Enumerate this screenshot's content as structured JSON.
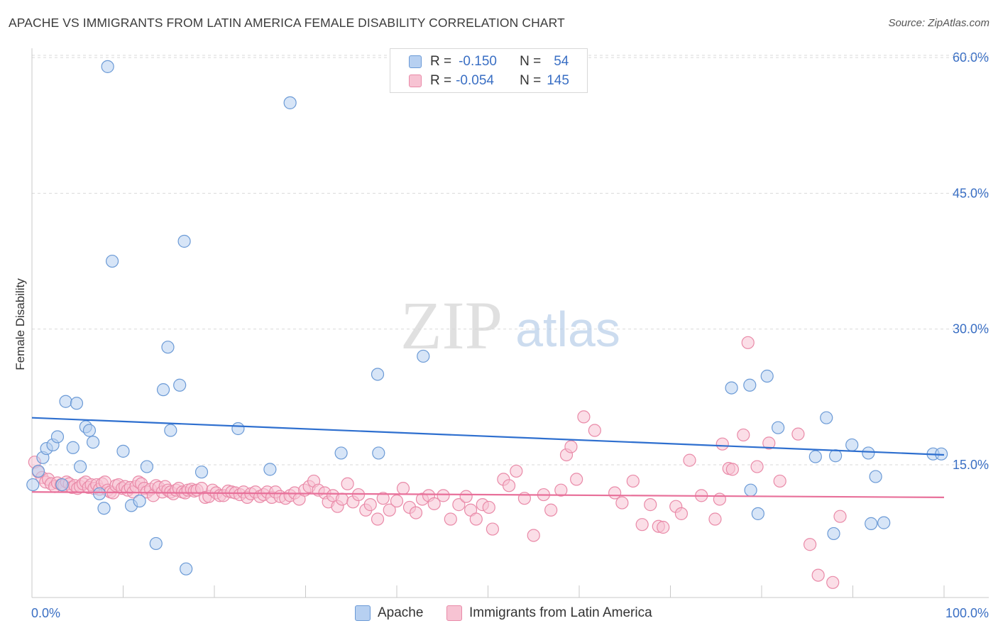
{
  "title": "APACHE VS IMMIGRANTS FROM LATIN AMERICA FEMALE DISABILITY CORRELATION CHART",
  "source": "Source: ZipAtlas.com",
  "watermark": {
    "zip": "ZIP",
    "atlas": "atlas"
  },
  "legend": {
    "series1": {
      "r_label": "R =",
      "r_value": "-0.150",
      "n_label": "N =",
      "n_value": "54"
    },
    "series2": {
      "r_label": "R =",
      "r_value": "-0.054",
      "n_label": "N =",
      "n_value": "145"
    }
  },
  "colors": {
    "apache_fill": "#b7d0f1",
    "apache_stroke": "#6b9ad6",
    "apache_line": "#2e6fcf",
    "latam_fill": "#f7c3d3",
    "latam_stroke": "#e98aa8",
    "latam_line": "#e8709a",
    "axis_label": "#3a6fc4",
    "grid": "#d9d9d9"
  },
  "chart_data": {
    "type": "scatter",
    "title": "APACHE VS IMMIGRANTS FROM LATIN AMERICA FEMALE DISABILITY CORRELATION CHART",
    "ylabel": "Female Disability",
    "xlabel": "",
    "xlim": [
      0,
      100
    ],
    "ylim": [
      0,
      61
    ],
    "x_tick_labels": [
      "0.0%",
      "100.0%"
    ],
    "y_ticks": [
      15,
      30,
      45,
      60
    ],
    "y_tick_labels": [
      "15.0%",
      "30.0%",
      "45.0%",
      "60.0%"
    ],
    "grid": "horizontal dashed",
    "legend_position": "top-center",
    "series": [
      {
        "name": "Apache",
        "R": -0.15,
        "N": 54,
        "trend": [
          [
            0,
            20.2
          ],
          [
            100,
            16.1
          ]
        ],
        "points": [
          [
            0.1,
            12.8
          ],
          [
            0.7,
            14.3
          ],
          [
            1.2,
            15.8
          ],
          [
            1.6,
            16.8
          ],
          [
            2.3,
            17.2
          ],
          [
            2.8,
            18.1
          ],
          [
            3.3,
            12.8
          ],
          [
            3.7,
            22.0
          ],
          [
            4.5,
            16.9
          ],
          [
            4.9,
            21.8
          ],
          [
            5.3,
            14.8
          ],
          [
            5.9,
            19.2
          ],
          [
            6.3,
            18.8
          ],
          [
            6.7,
            17.5
          ],
          [
            7.4,
            11.8
          ],
          [
            7.9,
            10.2
          ],
          [
            8.3,
            59.0
          ],
          [
            8.8,
            37.5
          ],
          [
            10.0,
            16.5
          ],
          [
            10.9,
            10.5
          ],
          [
            11.8,
            11.0
          ],
          [
            12.6,
            14.8
          ],
          [
            13.6,
            6.3
          ],
          [
            14.4,
            23.3
          ],
          [
            14.9,
            28.0
          ],
          [
            15.2,
            18.8
          ],
          [
            16.2,
            23.8
          ],
          [
            16.7,
            39.7
          ],
          [
            16.9,
            3.5
          ],
          [
            18.6,
            14.2
          ],
          [
            22.6,
            19.0
          ],
          [
            26.1,
            14.5
          ],
          [
            28.3,
            55.0
          ],
          [
            33.9,
            16.3
          ],
          [
            37.9,
            25.0
          ],
          [
            38.0,
            16.3
          ],
          [
            42.9,
            27.0
          ],
          [
            76.7,
            23.5
          ],
          [
            78.7,
            23.8
          ],
          [
            78.8,
            12.2
          ],
          [
            79.6,
            9.6
          ],
          [
            80.6,
            24.8
          ],
          [
            81.8,
            19.1
          ],
          [
            85.9,
            15.9
          ],
          [
            87.1,
            20.2
          ],
          [
            87.9,
            7.4
          ],
          [
            88.1,
            16.0
          ],
          [
            89.9,
            17.2
          ],
          [
            91.7,
            16.3
          ],
          [
            92.0,
            8.5
          ],
          [
            92.5,
            13.7
          ],
          [
            93.4,
            8.6
          ],
          [
            98.8,
            16.2
          ],
          [
            99.7,
            16.2
          ]
        ]
      },
      {
        "name": "Immigrants from Latin America",
        "R": -0.054,
        "N": 145,
        "trend": [
          [
            0,
            12.0
          ],
          [
            100,
            11.4
          ]
        ],
        "points": [
          [
            0.3,
            15.3
          ],
          [
            0.7,
            14.2
          ],
          [
            1.1,
            13.6
          ],
          [
            1.5,
            13.1
          ],
          [
            1.8,
            13.4
          ],
          [
            2.1,
            12.9
          ],
          [
            2.5,
            12.6
          ],
          [
            2.8,
            13.0
          ],
          [
            3.2,
            12.8
          ],
          [
            3.5,
            12.7
          ],
          [
            3.8,
            13.1
          ],
          [
            4.1,
            12.9
          ],
          [
            4.4,
            12.5
          ],
          [
            4.7,
            12.7
          ],
          [
            5.0,
            12.4
          ],
          [
            5.3,
            12.6
          ],
          [
            5.6,
            12.9
          ],
          [
            5.9,
            13.1
          ],
          [
            6.2,
            12.5
          ],
          [
            6.5,
            12.8
          ],
          [
            6.8,
            12.4
          ],
          [
            7.1,
            12.8
          ],
          [
            7.4,
            12.3
          ],
          [
            7.7,
            12.9
          ],
          [
            8.0,
            13.1
          ],
          [
            8.3,
            12.2
          ],
          [
            8.6,
            12.0
          ],
          [
            8.9,
            11.9
          ],
          [
            9.2,
            12.7
          ],
          [
            9.5,
            12.8
          ],
          [
            9.9,
            12.4
          ],
          [
            10.2,
            12.6
          ],
          [
            10.5,
            12.2
          ],
          [
            10.8,
            12.5
          ],
          [
            11.1,
            12.0
          ],
          [
            11.4,
            12.6
          ],
          [
            11.7,
            13.1
          ],
          [
            12.0,
            12.9
          ],
          [
            12.3,
            12.4
          ],
          [
            12.6,
            12.0
          ],
          [
            13.0,
            12.3
          ],
          [
            13.3,
            11.6
          ],
          [
            13.6,
            12.7
          ],
          [
            13.9,
            12.5
          ],
          [
            14.3,
            12.0
          ],
          [
            14.6,
            12.6
          ],
          [
            14.9,
            12.2
          ],
          [
            15.2,
            12.0
          ],
          [
            15.5,
            11.8
          ],
          [
            15.8,
            12.2
          ],
          [
            16.1,
            12.4
          ],
          [
            16.5,
            12.0
          ],
          [
            16.8,
            11.9
          ],
          [
            17.1,
            12.2
          ],
          [
            17.5,
            12.3
          ],
          [
            17.8,
            12.1
          ],
          [
            18.1,
            12.2
          ],
          [
            18.6,
            12.4
          ],
          [
            19.0,
            11.4
          ],
          [
            19.4,
            11.5
          ],
          [
            19.8,
            12.2
          ],
          [
            20.2,
            11.9
          ],
          [
            20.6,
            11.6
          ],
          [
            21.0,
            11.6
          ],
          [
            21.5,
            12.1
          ],
          [
            21.9,
            12.0
          ],
          [
            22.3,
            11.9
          ],
          [
            22.8,
            11.7
          ],
          [
            23.2,
            12.0
          ],
          [
            23.6,
            11.4
          ],
          [
            24.0,
            11.8
          ],
          [
            24.5,
            12.0
          ],
          [
            25.0,
            11.5
          ],
          [
            25.4,
            11.7
          ],
          [
            25.8,
            12.0
          ],
          [
            26.3,
            11.4
          ],
          [
            26.7,
            12.0
          ],
          [
            27.2,
            11.5
          ],
          [
            27.8,
            11.3
          ],
          [
            28.3,
            11.6
          ],
          [
            28.8,
            11.9
          ],
          [
            29.3,
            11.2
          ],
          [
            29.9,
            12.2
          ],
          [
            30.4,
            12.6
          ],
          [
            30.9,
            13.2
          ],
          [
            31.4,
            12.2
          ],
          [
            32.1,
            11.9
          ],
          [
            32.5,
            10.9
          ],
          [
            33.0,
            11.6
          ],
          [
            33.5,
            10.4
          ],
          [
            34.0,
            11.2
          ],
          [
            34.6,
            12.9
          ],
          [
            35.2,
            10.9
          ],
          [
            35.8,
            11.7
          ],
          [
            36.6,
            10.0
          ],
          [
            37.1,
            10.6
          ],
          [
            37.9,
            9.0
          ],
          [
            38.5,
            11.3
          ],
          [
            39.2,
            10.0
          ],
          [
            40.0,
            11.0
          ],
          [
            40.7,
            12.4
          ],
          [
            41.4,
            10.3
          ],
          [
            42.1,
            9.7
          ],
          [
            42.8,
            11.2
          ],
          [
            43.5,
            11.6
          ],
          [
            44.1,
            10.7
          ],
          [
            45.1,
            11.6
          ],
          [
            45.9,
            9.0
          ],
          [
            46.8,
            10.6
          ],
          [
            47.6,
            11.5
          ],
          [
            48.1,
            10.0
          ],
          [
            48.7,
            9.0
          ],
          [
            49.4,
            10.6
          ],
          [
            50.1,
            10.3
          ],
          [
            50.5,
            7.9
          ],
          [
            51.7,
            13.4
          ],
          [
            52.3,
            12.7
          ],
          [
            53.1,
            14.3
          ],
          [
            54.0,
            11.3
          ],
          [
            55.0,
            7.2
          ],
          [
            56.1,
            11.7
          ],
          [
            56.9,
            10.0
          ],
          [
            58.0,
            12.2
          ],
          [
            58.6,
            16.1
          ],
          [
            59.1,
            17.0
          ],
          [
            59.7,
            13.4
          ],
          [
            60.5,
            20.3
          ],
          [
            61.7,
            18.8
          ],
          [
            63.9,
            11.9
          ],
          [
            64.7,
            10.8
          ],
          [
            65.9,
            13.2
          ],
          [
            66.9,
            8.4
          ],
          [
            67.8,
            10.6
          ],
          [
            68.7,
            8.2
          ],
          [
            69.2,
            8.1
          ],
          [
            70.6,
            10.4
          ],
          [
            71.2,
            9.6
          ],
          [
            72.1,
            15.5
          ],
          [
            73.4,
            11.6
          ],
          [
            74.9,
            9.0
          ],
          [
            75.4,
            11.2
          ],
          [
            75.7,
            17.3
          ],
          [
            76.4,
            14.6
          ],
          [
            76.8,
            14.5
          ],
          [
            78.0,
            18.3
          ],
          [
            78.5,
            28.5
          ],
          [
            79.5,
            14.8
          ],
          [
            80.8,
            17.4
          ],
          [
            82.0,
            13.2
          ],
          [
            84.0,
            18.4
          ],
          [
            85.3,
            6.2
          ],
          [
            86.2,
            2.8
          ],
          [
            87.8,
            2.0
          ],
          [
            88.6,
            9.3
          ]
        ]
      }
    ]
  }
}
